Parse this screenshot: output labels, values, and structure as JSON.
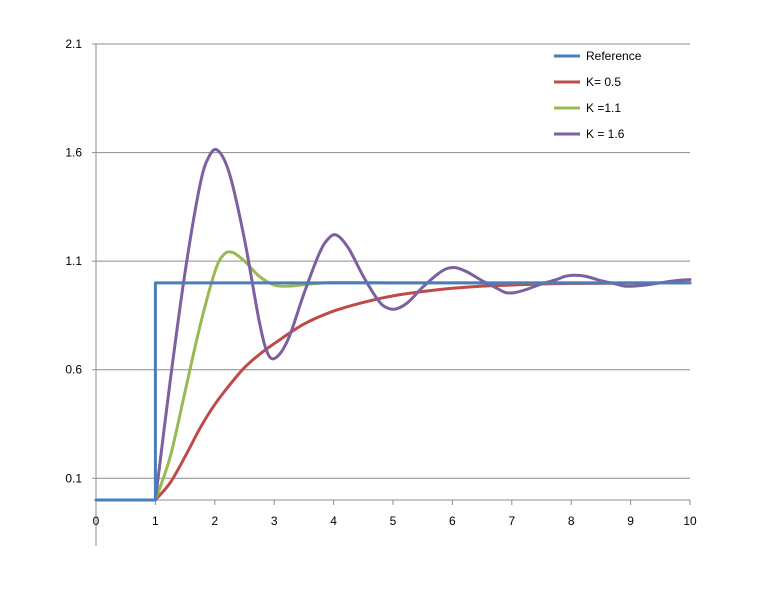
{
  "chart_data": {
    "type": "line",
    "title": "",
    "xlabel": "",
    "ylabel": "",
    "xlim": [
      0,
      10
    ],
    "ylim": [
      0,
      2.1
    ],
    "x_ticks": [
      0,
      1,
      2,
      3,
      4,
      5,
      6,
      7,
      8,
      9,
      10
    ],
    "x_tick_labels": [
      "0",
      "1",
      "2",
      "3",
      "4",
      "5",
      "6",
      "7",
      "8",
      "9",
      "10"
    ],
    "y_ticks": [
      0.1,
      0.6,
      1.1,
      1.6,
      2.1
    ],
    "y_tick_labels": [
      "0.1",
      "0.6",
      "1.1",
      "1.6",
      "2.1"
    ],
    "grid": "horizontal",
    "legend_position": "top-right",
    "series": [
      {
        "name": "Reference",
        "color": "#4a7ebb",
        "x": [
          0,
          1,
          1,
          10
        ],
        "y": [
          0,
          0,
          1,
          1
        ]
      },
      {
        "name": "K= 0.5",
        "color": "#be4b48",
        "x": [
          1,
          1.25,
          1.5,
          1.75,
          2,
          2.25,
          2.5,
          2.75,
          3,
          3.5,
          4,
          4.5,
          5,
          5.5,
          6,
          6.5,
          7,
          7.5,
          8,
          9,
          10
        ],
        "y": [
          0,
          0.08,
          0.2,
          0.33,
          0.44,
          0.53,
          0.61,
          0.67,
          0.72,
          0.81,
          0.87,
          0.91,
          0.94,
          0.96,
          0.975,
          0.985,
          0.99,
          0.995,
          0.997,
          0.999,
          1.0
        ]
      },
      {
        "name": "K =1.1",
        "color": "#98b954",
        "x": [
          1,
          1.25,
          1.5,
          1.75,
          2,
          2.15,
          2.3,
          2.5,
          2.75,
          3,
          3.25,
          3.5,
          3.75,
          4,
          4.5,
          5,
          6,
          7,
          8,
          9,
          10
        ],
        "y": [
          0,
          0.2,
          0.5,
          0.8,
          1.05,
          1.13,
          1.14,
          1.1,
          1.03,
          0.99,
          0.985,
          0.992,
          0.998,
          1.001,
          1.001,
          1.0,
          1.0,
          1.0,
          1.0,
          1.0,
          1.0
        ]
      },
      {
        "name": "K = 1.6",
        "color": "#7d60a0",
        "x": [
          1,
          1.25,
          1.5,
          1.75,
          1.9,
          2.05,
          2.25,
          2.5,
          2.75,
          2.9,
          3.05,
          3.25,
          3.5,
          3.75,
          3.9,
          4.05,
          4.25,
          4.5,
          4.75,
          4.9,
          5.05,
          5.25,
          5.5,
          5.75,
          5.9,
          6.05,
          6.25,
          6.5,
          6.75,
          6.9,
          7.05,
          7.25,
          7.5,
          7.75,
          7.9,
          8.05,
          8.25,
          8.5,
          8.75,
          8.9,
          9.05,
          9.25,
          9.5,
          9.75,
          10
        ],
        "y": [
          0,
          0.55,
          1.05,
          1.45,
          1.58,
          1.61,
          1.5,
          1.2,
          0.82,
          0.67,
          0.66,
          0.75,
          0.95,
          1.13,
          1.2,
          1.22,
          1.16,
          1.03,
          0.92,
          0.885,
          0.88,
          0.91,
          0.98,
          1.04,
          1.065,
          1.07,
          1.05,
          1.01,
          0.975,
          0.955,
          0.955,
          0.97,
          0.995,
          1.015,
          1.03,
          1.035,
          1.03,
          1.01,
          0.995,
          0.985,
          0.985,
          0.99,
          1.0,
          1.01,
          1.015
        ]
      }
    ]
  }
}
